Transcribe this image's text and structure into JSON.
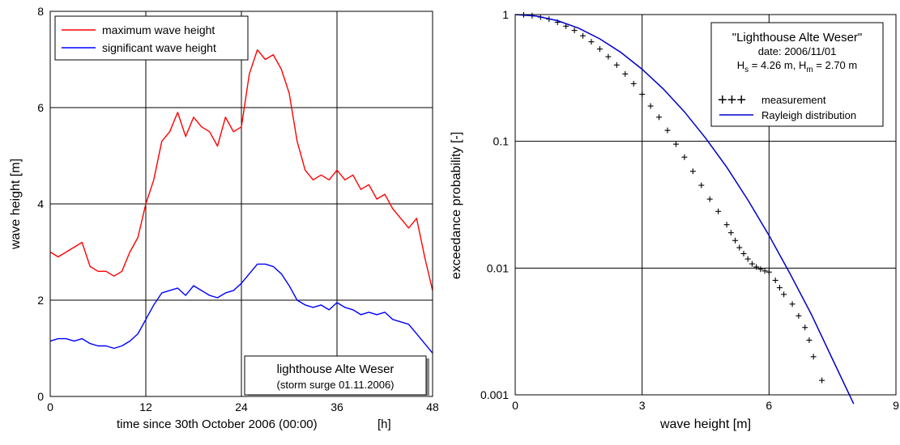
{
  "chart_data": [
    {
      "type": "line",
      "xlabel": "time since 30th October 2006 (00:00)",
      "xunit": "[h]",
      "ylabel": "wave height   [m]",
      "xlim": [
        0,
        48
      ],
      "ylim": [
        0,
        8
      ],
      "xticks": [
        0,
        12,
        24,
        36,
        48
      ],
      "yticks": [
        0,
        2,
        4,
        6,
        8
      ],
      "grid": true,
      "legend_position": "top-left",
      "annotation": {
        "line1": "lighthouse Alte Weser",
        "line2": "(storm surge 01.11.2006)"
      },
      "series": [
        {
          "name": "maximum wave height",
          "color": "#ff0000",
          "x": [
            0,
            1,
            2,
            3,
            4,
            5,
            6,
            7,
            8,
            9,
            10,
            11,
            12,
            13,
            14,
            15,
            16,
            17,
            18,
            19,
            20,
            21,
            22,
            23,
            24,
            25,
            26,
            27,
            28,
            29,
            30,
            31,
            32,
            33,
            34,
            35,
            36,
            37,
            38,
            39,
            40,
            41,
            42,
            43,
            44,
            45,
            46,
            47,
            48
          ],
          "y": [
            3.0,
            2.9,
            3.0,
            3.1,
            3.2,
            2.7,
            2.6,
            2.6,
            2.5,
            2.6,
            3.0,
            3.3,
            4.0,
            4.5,
            5.3,
            5.5,
            5.9,
            5.4,
            5.8,
            5.6,
            5.5,
            5.2,
            5.8,
            5.5,
            5.6,
            6.7,
            7.2,
            7.0,
            7.1,
            6.8,
            6.3,
            5.3,
            4.7,
            4.5,
            4.6,
            4.5,
            4.7,
            4.5,
            4.6,
            4.3,
            4.4,
            4.1,
            4.2,
            3.9,
            3.7,
            3.5,
            3.7,
            2.9,
            2.2
          ]
        },
        {
          "name": "significant wave height",
          "color": "#0000ff",
          "x": [
            0,
            1,
            2,
            3,
            4,
            5,
            6,
            7,
            8,
            9,
            10,
            11,
            12,
            13,
            14,
            15,
            16,
            17,
            18,
            19,
            20,
            21,
            22,
            23,
            24,
            25,
            26,
            27,
            28,
            29,
            30,
            31,
            32,
            33,
            34,
            35,
            36,
            37,
            38,
            39,
            40,
            41,
            42,
            43,
            44,
            45,
            46,
            47,
            48
          ],
          "y": [
            1.15,
            1.2,
            1.2,
            1.15,
            1.2,
            1.1,
            1.05,
            1.05,
            1.0,
            1.05,
            1.15,
            1.3,
            1.6,
            1.9,
            2.15,
            2.2,
            2.25,
            2.1,
            2.3,
            2.2,
            2.1,
            2.05,
            2.15,
            2.2,
            2.35,
            2.55,
            2.75,
            2.75,
            2.7,
            2.55,
            2.3,
            2.0,
            1.9,
            1.85,
            1.9,
            1.8,
            1.95,
            1.85,
            1.8,
            1.7,
            1.75,
            1.7,
            1.75,
            1.6,
            1.55,
            1.5,
            1.3,
            1.1,
            0.9
          ]
        }
      ]
    },
    {
      "type": "scatter",
      "xlabel": "wave height   [m]",
      "ylabel": "exceedance probability   [-]",
      "xlim": [
        0,
        9
      ],
      "ylim": [
        0.001,
        1
      ],
      "yscale": "log",
      "xticks": [
        0,
        3,
        6,
        9
      ],
      "yticks": [
        0.001,
        0.01,
        0.1,
        1
      ],
      "ytick_labels": [
        "0.001",
        "0.01",
        "0.1",
        "1"
      ],
      "grid": true,
      "legend_position": "top-right",
      "annotation": {
        "title": "\"Lighthouse Alte Weser\"",
        "date": "date: 2006/11/01",
        "hs_main": "H",
        "hs_sub": "s",
        "hs_value": " = 4.26 m, ",
        "hm_main": "H",
        "hm_sub": "m",
        "hm_value": " = 2.70 m"
      },
      "legend": {
        "marker_text": "+++",
        "measurement": "measurement",
        "rayleigh": "Rayleigh distribution"
      },
      "Hs": 4.26,
      "Hm": 2.7,
      "series": [
        {
          "name": "measurement",
          "marker": "plus",
          "color": "#000000",
          "x": [
            0.2,
            0.4,
            0.6,
            0.8,
            1.0,
            1.2,
            1.4,
            1.6,
            1.8,
            2.0,
            2.2,
            2.4,
            2.6,
            2.8,
            3.0,
            3.2,
            3.4,
            3.6,
            3.8,
            4.0,
            4.2,
            4.4,
            4.6,
            4.8,
            5.0,
            5.1,
            5.2,
            5.3,
            5.4,
            5.5,
            5.6,
            5.7,
            5.8,
            5.9,
            6.0,
            6.15,
            6.25,
            6.35,
            6.55,
            6.7,
            6.85,
            6.95,
            7.05,
            7.25
          ],
          "y": [
            0.995,
            0.98,
            0.955,
            0.92,
            0.87,
            0.81,
            0.75,
            0.68,
            0.61,
            0.535,
            0.465,
            0.4,
            0.34,
            0.285,
            0.235,
            0.19,
            0.155,
            0.122,
            0.095,
            0.075,
            0.058,
            0.045,
            0.035,
            0.028,
            0.022,
            0.019,
            0.0165,
            0.0145,
            0.013,
            0.0118,
            0.0108,
            0.0102,
            0.0098,
            0.0095,
            0.0093,
            0.008,
            0.007,
            0.0062,
            0.0052,
            0.0042,
            0.0034,
            0.0027,
            0.002,
            0.0013
          ]
        },
        {
          "name": "Rayleigh distribution",
          "color": "#0000cc",
          "x": [
            0,
            0.5,
            1,
            1.5,
            2,
            2.5,
            3,
            3.5,
            4,
            4.5,
            5,
            5.5,
            6,
            6.5,
            7,
            7.5,
            8
          ],
          "y": [
            1.0,
            0.972,
            0.896,
            0.781,
            0.643,
            0.502,
            0.37,
            0.259,
            0.171,
            0.106,
            0.0625,
            0.0345,
            0.0181,
            0.009,
            0.00431,
            0.00191,
            0.00085
          ]
        }
      ]
    }
  ]
}
